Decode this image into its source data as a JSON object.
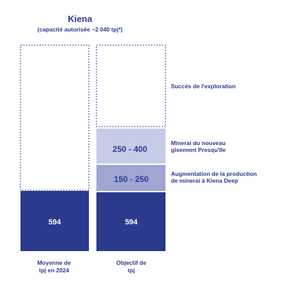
{
  "title": "Kiena",
  "subtitle": "(capacité autorisée ~2 040 tpj*)",
  "colors": {
    "dark": "#2b3a8c",
    "mid": "#9fa6d3",
    "light": "#c6cbe8",
    "dotted": "#2b3a8c"
  },
  "chart_data": {
    "type": "bar",
    "categories": [
      "Moyenne de tpj en 2024",
      "Objectif de tpj"
    ],
    "series": [
      {
        "name": "",
        "values": [
          594,
          594
        ],
        "labels": [
          "594",
          "594"
        ]
      },
      {
        "name": "Augmentation de la production de minerai à Kiena Deep",
        "range": [
          150,
          250
        ],
        "label": "150 - 250"
      },
      {
        "name": "Minerai du nouveau gisement Presqu'île",
        "range": [
          250,
          400
        ],
        "label": "250 - 400"
      },
      {
        "name": "Succès de l'exploration",
        "dotted_outline": true
      }
    ]
  },
  "xlabels": {
    "bar1": [
      "Moyenne de",
      "tpj en 2024"
    ],
    "bar2": [
      "Objectif de",
      "tpj"
    ]
  },
  "annotations": {
    "exploration": "Succès de l'exploration",
    "presquile": [
      "Minerai du nouveau",
      "gisement Presqu'île"
    ],
    "deep": [
      "Augmentation de la production",
      "de minerai à Kiena Deep"
    ]
  }
}
